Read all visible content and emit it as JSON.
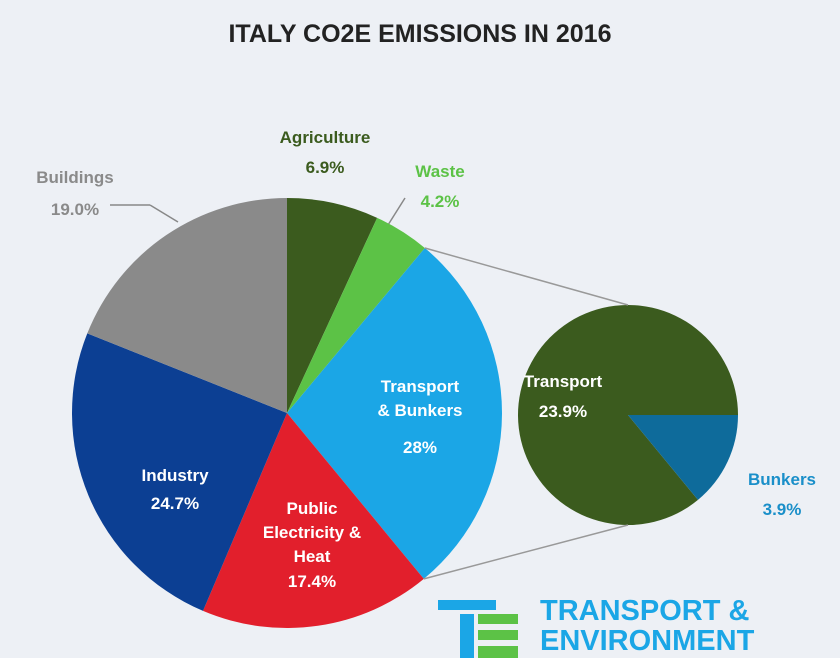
{
  "chart_data": {
    "type": "pie",
    "title": "ITALY CO2E EMISSIONS IN 2016",
    "categories": [
      "Agriculture",
      "Waste",
      "Transport & Bunkers",
      "Public Electricity & Heat",
      "Industry",
      "Buildings"
    ],
    "values": [
      6.9,
      4.2,
      28,
      17.4,
      24.7,
      19.0
    ],
    "value_labels": [
      "6.9%",
      "4.2%",
      "28%",
      "17.4%",
      "24.7%",
      "19.0%"
    ],
    "colors": [
      "#3b5b1e",
      "#5cc246",
      "#1ba6e6",
      "#e21f2c",
      "#0c3f93",
      "#8a8a8a"
    ],
    "breakout": {
      "categories": [
        "Transport",
        "Bunkers"
      ],
      "values": [
        23.9,
        3.9
      ],
      "value_labels": [
        "23.9%",
        "3.9%"
      ],
      "colors": [
        "#3b5b1e",
        "#0e6b9b"
      ]
    }
  },
  "logo": [
    "TRANSPORT &",
    "ENVIRONMENT"
  ]
}
